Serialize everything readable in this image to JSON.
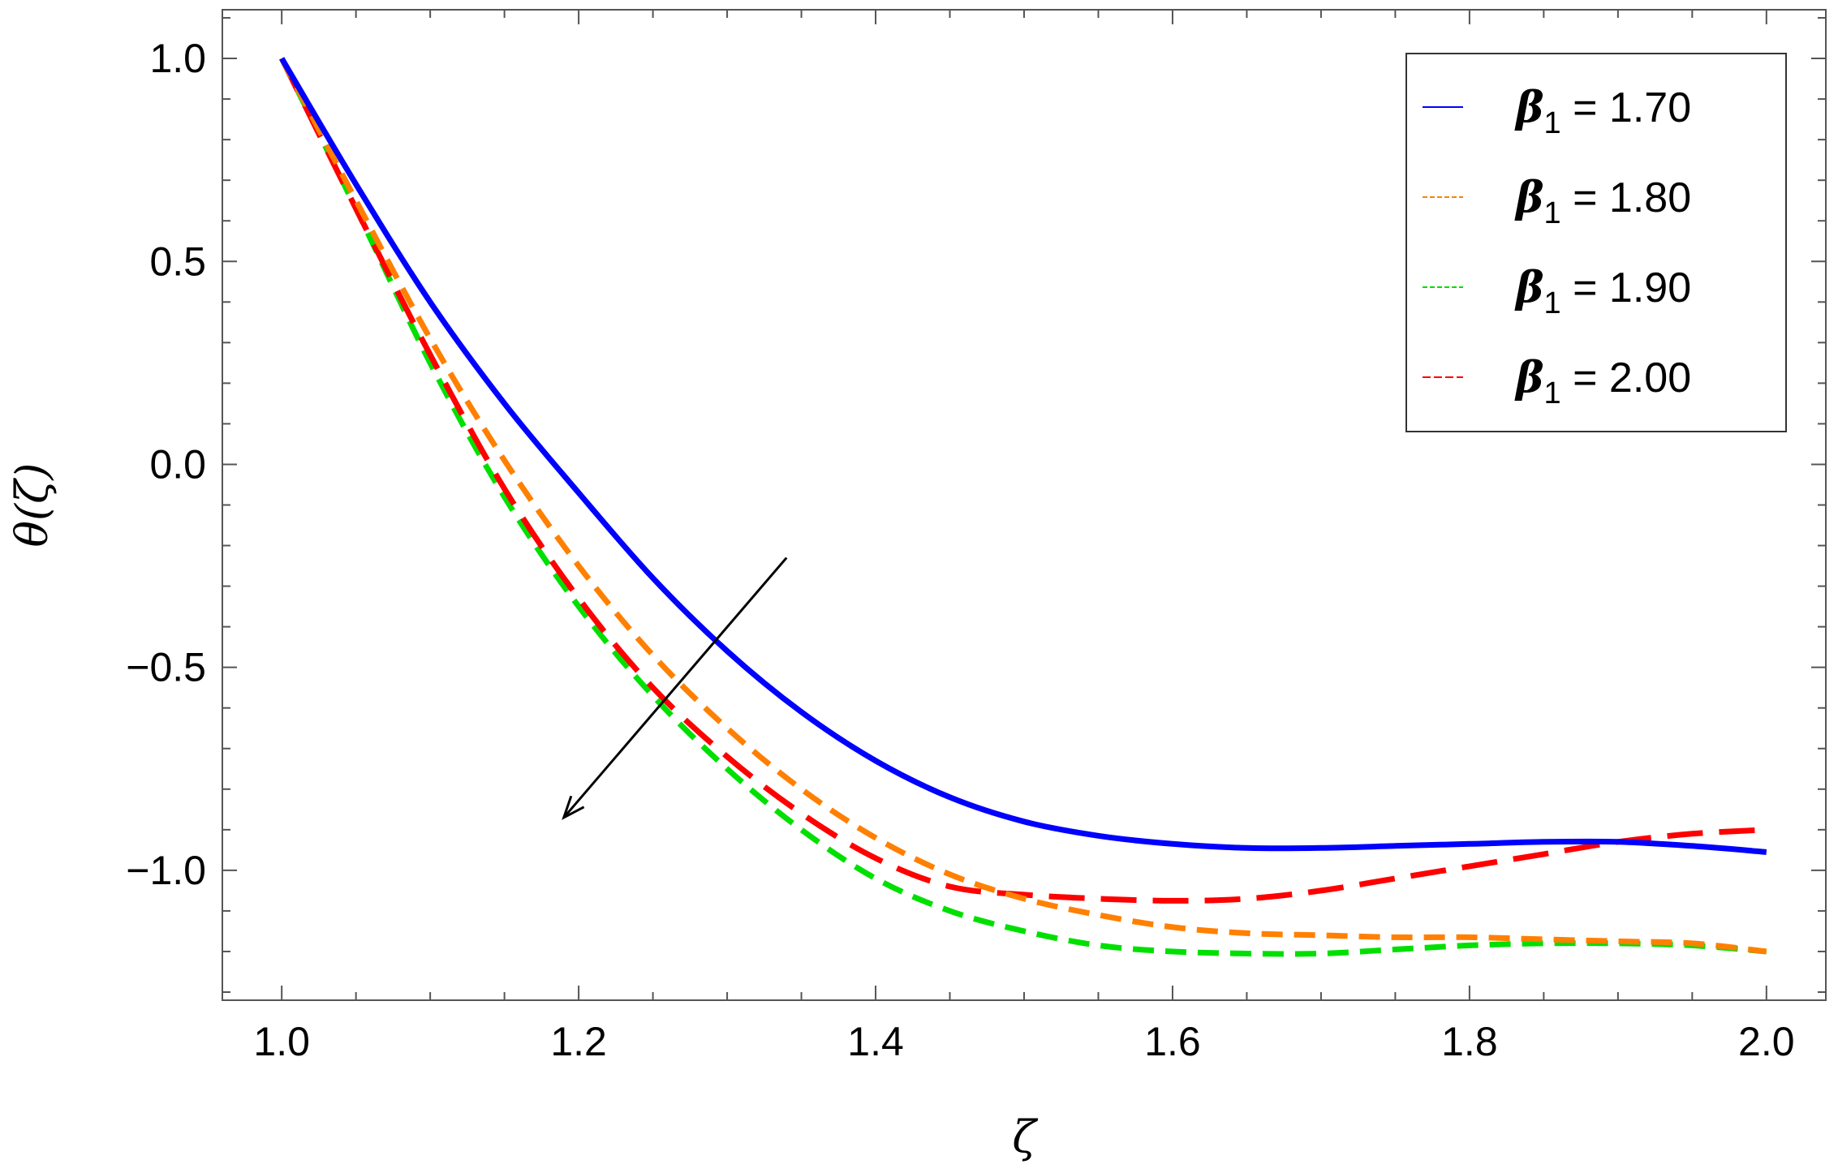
{
  "chart_data": {
    "type": "line",
    "xlabel": "ζ",
    "ylabel": "θ(ζ)",
    "xlim": [
      0.96,
      2.04
    ],
    "ylim": [
      -1.32,
      1.12
    ],
    "x_ticks": [
      1.0,
      1.2,
      1.4,
      1.6,
      1.8,
      2.0
    ],
    "x_tick_labels": [
      "1.0",
      "1.2",
      "1.4",
      "1.6",
      "1.8",
      "2.0"
    ],
    "y_ticks": [
      1.0,
      0.5,
      0.0,
      -0.5,
      -1.0
    ],
    "y_tick_labels": [
      "1.0",
      "0.5",
      "0.0",
      "−0.5",
      "−1.0"
    ],
    "grid": false,
    "legend_position": "top-right",
    "x": [
      1.0,
      1.05,
      1.1,
      1.15,
      1.2,
      1.25,
      1.3,
      1.35,
      1.4,
      1.45,
      1.5,
      1.55,
      1.6,
      1.65,
      1.7,
      1.75,
      1.8,
      1.85,
      1.9,
      1.95,
      2.0
    ],
    "series": [
      {
        "name": "β1 = 1.70",
        "legend_symbol": "β",
        "legend_subscript": "1",
        "legend_value": " = 1.70",
        "color": "#0000ff",
        "dash": "solid",
        "values": [
          1.0,
          0.69,
          0.4,
          0.15,
          -0.07,
          -0.28,
          -0.46,
          -0.61,
          -0.73,
          -0.82,
          -0.88,
          -0.915,
          -0.935,
          -0.945,
          -0.945,
          -0.94,
          -0.935,
          -0.93,
          -0.93,
          -0.94,
          -0.955
        ]
      },
      {
        "name": "β1 = 1.80",
        "legend_symbol": "β",
        "legend_subscript": "1",
        "legend_value": " = 1.80",
        "color": "#ff8000",
        "dash": "dashed",
        "values": [
          1.0,
          0.65,
          0.31,
          0.01,
          -0.25,
          -0.47,
          -0.65,
          -0.8,
          -0.92,
          -1.01,
          -1.07,
          -1.11,
          -1.14,
          -1.155,
          -1.16,
          -1.165,
          -1.165,
          -1.17,
          -1.175,
          -1.18,
          -1.2
        ]
      },
      {
        "name": "β1 = 1.90",
        "legend_symbol": "β",
        "legend_subscript": "1",
        "legend_value": " = 1.90",
        "color": "#00e000",
        "dash": "dashed",
        "values": [
          1.0,
          0.63,
          0.25,
          -0.08,
          -0.35,
          -0.57,
          -0.75,
          -0.9,
          -1.02,
          -1.1,
          -1.15,
          -1.185,
          -1.2,
          -1.205,
          -1.205,
          -1.195,
          -1.185,
          -1.18,
          -1.18,
          -1.185,
          -1.2
        ]
      },
      {
        "name": "β1 = 2.00",
        "legend_symbol": "β",
        "legend_subscript": "1",
        "legend_value": " = 2.00",
        "color": "#ff0000",
        "dash": "long-dashed",
        "values": [
          1.0,
          0.63,
          0.27,
          -0.06,
          -0.33,
          -0.55,
          -0.72,
          -0.86,
          -0.97,
          -1.04,
          -1.06,
          -1.07,
          -1.075,
          -1.07,
          -1.05,
          -1.02,
          -0.99,
          -0.96,
          -0.93,
          -0.91,
          -0.9
        ]
      }
    ],
    "annotations": [
      {
        "type": "arrow",
        "from": [
          1.34,
          -0.23
        ],
        "to": [
          1.19,
          -0.87
        ],
        "color": "#000000"
      }
    ]
  }
}
